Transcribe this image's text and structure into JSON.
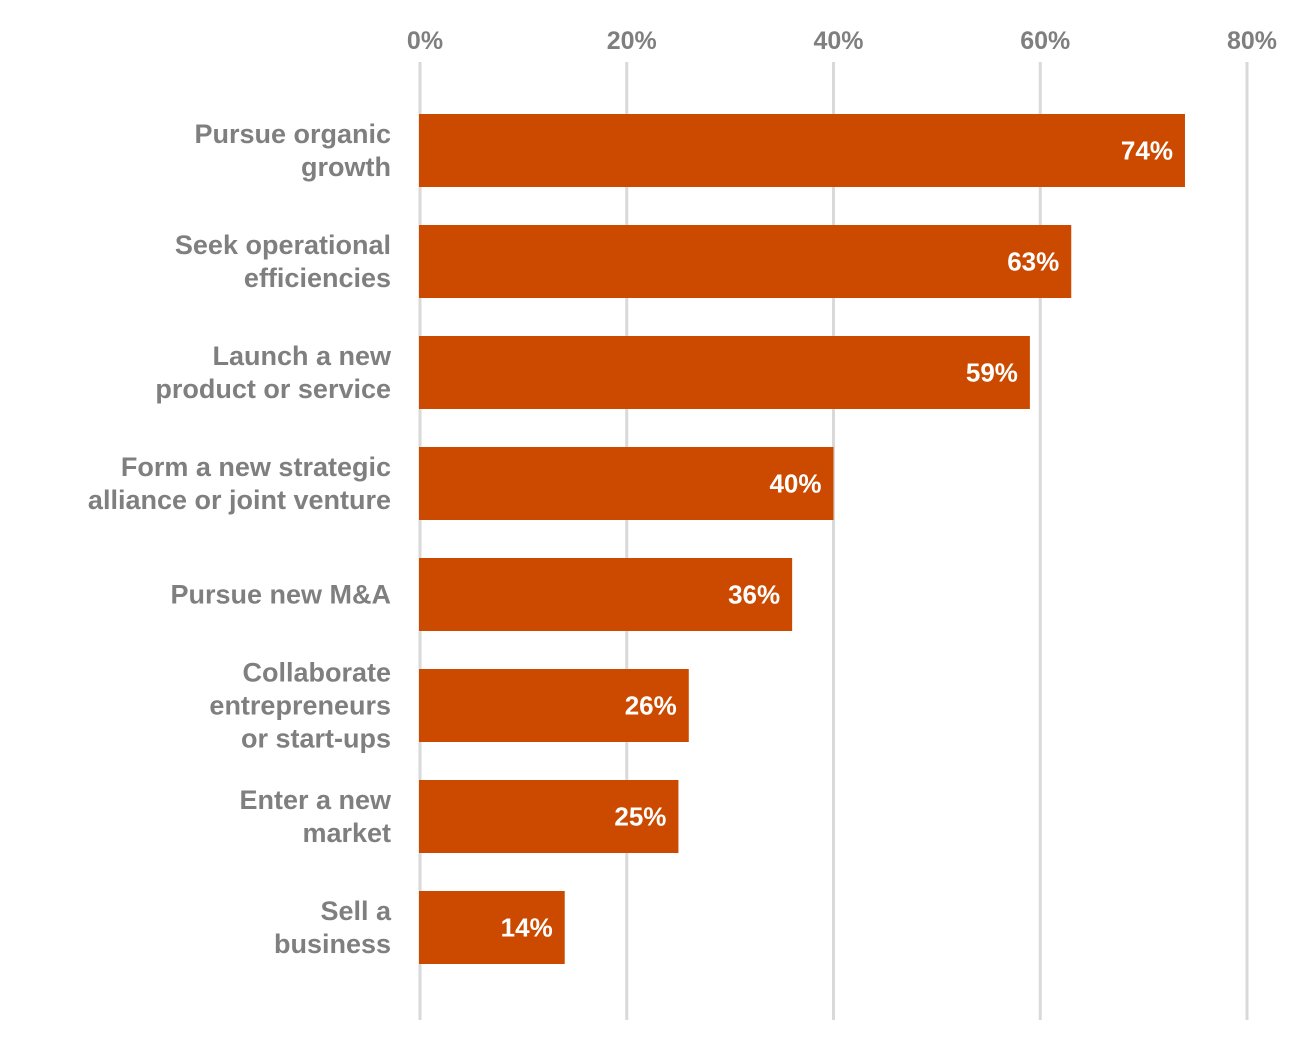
{
  "chart_data": {
    "type": "bar",
    "orientation": "horizontal",
    "categories": [
      [
        "Pursue organic",
        "growth"
      ],
      [
        "Seek operational",
        "efficiencies"
      ],
      [
        "Launch a new",
        "product or service"
      ],
      [
        "Form a new strategic",
        "alliance or joint venture"
      ],
      [
        "Pursue new M&A"
      ],
      [
        "Collaborate",
        "entrepreneurs",
        "or start-ups"
      ],
      [
        "Enter a new",
        "market"
      ],
      [
        "Sell a",
        "business"
      ]
    ],
    "values": [
      74,
      63,
      59,
      40,
      36,
      26,
      25,
      14
    ],
    "data_labels": [
      "74%",
      "63%",
      "59%",
      "40%",
      "36%",
      "26%",
      "25%",
      "14%"
    ],
    "xlim": [
      0,
      80
    ],
    "xticks": [
      0,
      20,
      40,
      60,
      80
    ],
    "xtick_labels": [
      "0%",
      "20%",
      "40%",
      "60%",
      "80%"
    ],
    "x_axis_position": "top",
    "grid": true,
    "legend": "none",
    "title": "",
    "xlabel": "",
    "ylabel": "",
    "colors": {
      "bar": "#cc4a00",
      "grid": "#d9d9d9",
      "label_text": "#7f7f7f",
      "value_text": "#ffffff"
    }
  }
}
